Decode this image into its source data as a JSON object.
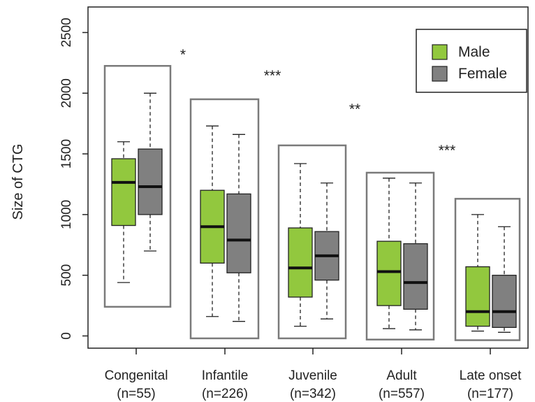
{
  "chart_data": {
    "type": "box",
    "title": "",
    "xlabel": "",
    "ylabel": "Size of CTG",
    "ylim": [
      -100,
      2600
    ],
    "yticks": [
      0,
      500,
      1000,
      1500,
      2000,
      2500
    ],
    "categories": [
      {
        "name": "Congenital",
        "n": "(n=55)"
      },
      {
        "name": "Infantile",
        "n": "(n=226)"
      },
      {
        "name": "Juvenile",
        "n": "(n=342)"
      },
      {
        "name": "Adult",
        "n": "(n=557)"
      },
      {
        "name": "Late onset",
        "n": "(n=177)"
      }
    ],
    "series": [
      {
        "name": "Male",
        "color": "#92C83E",
        "boxes": [
          {
            "min": 440,
            "q1": 910,
            "median": 1265,
            "q3": 1460,
            "max": 1600
          },
          {
            "min": 160,
            "q1": 600,
            "median": 900,
            "q3": 1200,
            "max": 1730
          },
          {
            "min": 80,
            "q1": 320,
            "median": 560,
            "q3": 890,
            "max": 1420
          },
          {
            "min": 60,
            "q1": 250,
            "median": 530,
            "q3": 780,
            "max": 1300
          },
          {
            "min": 40,
            "q1": 80,
            "median": 200,
            "q3": 570,
            "max": 1000
          }
        ]
      },
      {
        "name": "Female",
        "color": "#808080",
        "boxes": [
          {
            "min": 700,
            "q1": 1000,
            "median": 1230,
            "q3": 1540,
            "max": 2000
          },
          {
            "min": 120,
            "q1": 520,
            "median": 790,
            "q3": 1170,
            "max": 1660
          },
          {
            "min": 140,
            "q1": 460,
            "median": 660,
            "q3": 860,
            "max": 1260
          },
          {
            "min": 50,
            "q1": 220,
            "median": 440,
            "q3": 760,
            "max": 1260
          },
          {
            "min": 30,
            "q1": 70,
            "median": 200,
            "q3": 500,
            "max": 900
          }
        ]
      }
    ],
    "significance": [
      "*",
      "***",
      "**",
      "***"
    ],
    "legend": {
      "position": "top-right",
      "entries": [
        "Male",
        "Female"
      ]
    }
  }
}
